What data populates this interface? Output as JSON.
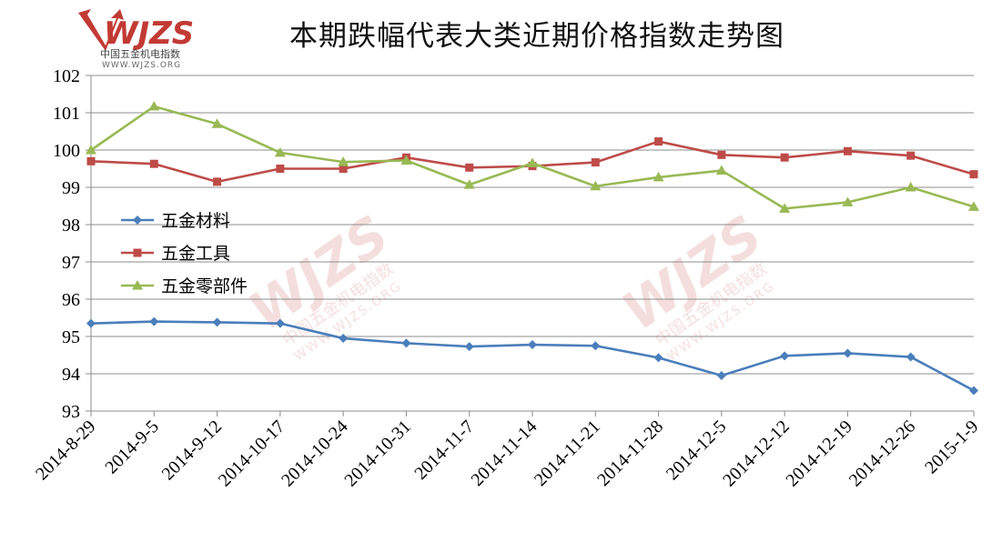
{
  "logo": {
    "text": "WJZS",
    "sub1": "中国五金机电指数",
    "sub2": "WWW.WJZS.ORG"
  },
  "watermark": {
    "text": "WJZS",
    "sub1": "中国五金机电指数",
    "sub2": "WWW.WJZS.ORG"
  },
  "chart_data": {
    "type": "line",
    "title": "本期跌幅代表大类近期价格指数走势图",
    "xlabel": "",
    "ylabel": "",
    "ylim": [
      93,
      102
    ],
    "yticks": [
      93,
      94,
      95,
      96,
      97,
      98,
      99,
      100,
      101,
      102
    ],
    "grid": "horizontal",
    "legend_position": "left-middle",
    "categories": [
      "2014-8-29",
      "2014-9-5",
      "2014-9-12",
      "2014-10-17",
      "2014-10-24",
      "2014-10-31",
      "2014-11-7",
      "2014-11-14",
      "2014-11-21",
      "2014-11-28",
      "2014-12-5",
      "2014-12-12",
      "2014-12-19",
      "2014-12-26",
      "2015-1-9"
    ],
    "series": [
      {
        "name": "五金材料",
        "color": "#4a7ebb",
        "marker": "diamond",
        "values": [
          95.35,
          95.4,
          95.38,
          95.35,
          94.95,
          94.82,
          94.73,
          94.78,
          94.75,
          94.43,
          93.95,
          94.48,
          94.55,
          94.45,
          93.55
        ]
      },
      {
        "name": "五金工具",
        "color": "#be4b48",
        "marker": "square",
        "values": [
          99.7,
          99.63,
          99.15,
          99.5,
          99.5,
          99.8,
          99.53,
          99.57,
          99.67,
          100.23,
          99.87,
          99.8,
          99.97,
          99.85,
          99.35
        ]
      },
      {
        "name": "五金零部件",
        "color": "#98b954",
        "marker": "triangle",
        "values": [
          100.0,
          101.17,
          100.7,
          99.93,
          99.68,
          99.72,
          99.07,
          99.65,
          99.03,
          99.27,
          99.45,
          98.43,
          98.6,
          99.0,
          98.48
        ]
      }
    ]
  }
}
